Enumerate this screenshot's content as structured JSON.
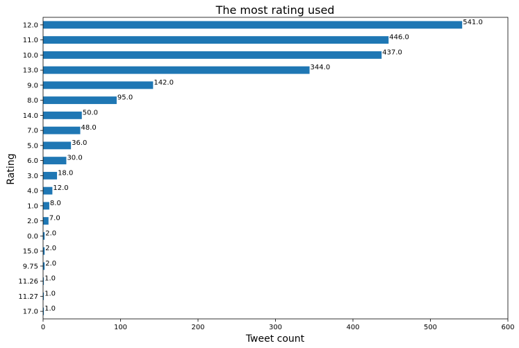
{
  "chart_data": {
    "type": "bar",
    "orientation": "horizontal",
    "title": "The most rating used",
    "xlabel": "Tweet count",
    "ylabel": "Rating",
    "xlim": [
      0,
      600
    ],
    "xticks": [
      "0",
      "100",
      "200",
      "300",
      "400",
      "500",
      "600"
    ],
    "bar_color": "#1f77b4",
    "grid": false,
    "categories": [
      "12.0",
      "11.0",
      "10.0",
      "13.0",
      "9.0",
      "8.0",
      "14.0",
      "7.0",
      "5.0",
      "6.0",
      "3.0",
      "4.0",
      "1.0",
      "2.0",
      "0.0",
      "15.0",
      "9.75",
      "11.26",
      "11.27",
      "17.0"
    ],
    "values": [
      541,
      446,
      437,
      344,
      142,
      95,
      50,
      48,
      36,
      30,
      18,
      12,
      8,
      7,
      2,
      2,
      2,
      1,
      1,
      1
    ],
    "value_labels": [
      "541.0",
      "446.0",
      "437.0",
      "344.0",
      "142.0",
      "95.0",
      "50.0",
      "48.0",
      "36.0",
      "30.0",
      "18.0",
      "12.0",
      "8.0",
      "7.0",
      "2.0",
      "2.0",
      "2.0",
      "1.0",
      "1.0",
      "1.0"
    ]
  }
}
